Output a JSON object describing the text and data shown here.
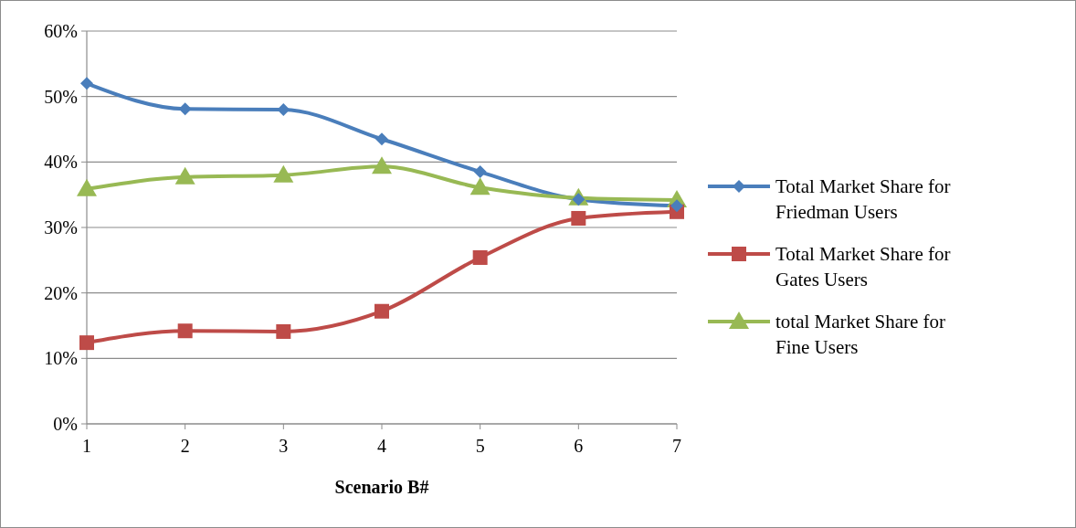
{
  "chart_data": {
    "type": "line",
    "xlabel": "Scenario B#",
    "x": [
      1,
      2,
      3,
      4,
      5,
      6,
      7
    ],
    "xlim": [
      1,
      7
    ],
    "xticks": [
      1,
      2,
      3,
      4,
      5,
      6,
      7
    ],
    "ylim": [
      0,
      60
    ],
    "yticks": [
      {
        "value": 0,
        "label": "0%"
      },
      {
        "value": 10,
        "label": "10%"
      },
      {
        "value": 20,
        "label": "20%"
      },
      {
        "value": 30,
        "label": "30%"
      },
      {
        "value": 40,
        "label": "40%"
      },
      {
        "value": 50,
        "label": "50%"
      },
      {
        "value": 60,
        "label": "60%"
      }
    ],
    "grid": "y",
    "legend": "right",
    "line_style": "solid",
    "series": [
      {
        "name": "Total Market Share for Friedman Users",
        "color": "#4a7ebb",
        "marker": "diamond",
        "values": [
          52.0,
          48.1,
          48.0,
          43.5,
          38.5,
          34.3,
          33.3
        ]
      },
      {
        "name": "Total Market Share for Gates Users",
        "color": "#be4b48",
        "marker": "square",
        "values": [
          12.4,
          14.2,
          14.1,
          17.2,
          25.4,
          31.4,
          32.4
        ]
      },
      {
        "name": "total Market Share for Fine Users",
        "color": "#98b954",
        "marker": "triangle",
        "values": [
          35.9,
          37.7,
          38.0,
          39.3,
          36.1,
          34.5,
          34.2
        ]
      }
    ]
  }
}
